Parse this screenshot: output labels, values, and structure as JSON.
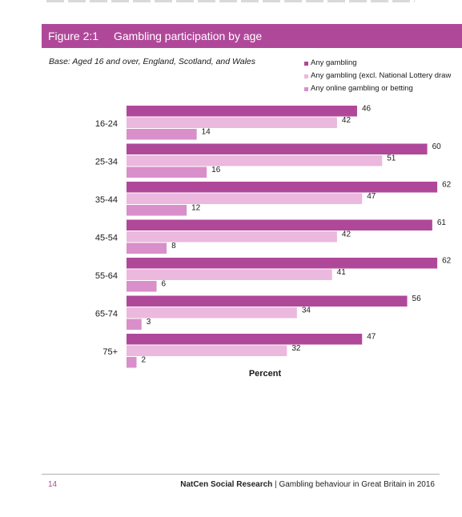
{
  "figure": {
    "number": "Figure 2:1",
    "title": "Gambling participation by age",
    "base": "Base: Aged 16 and over, England, Scotland, and Wales",
    "header_color": "#b0489a"
  },
  "chart_data": {
    "type": "bar",
    "orientation": "horizontal",
    "title": "Gambling participation by age",
    "xlabel": "Percent",
    "ylabel": "",
    "xlim": [
      0,
      70
    ],
    "grid": false,
    "legend_position": "top-right",
    "categories": [
      "16-24",
      "25-34",
      "35-44",
      "45-54",
      "55-64",
      "65-74",
      "75+"
    ],
    "series": [
      {
        "name": "Any gambling",
        "color": "#b0489a",
        "values": [
          46,
          60,
          62,
          61,
          62,
          56,
          47
        ]
      },
      {
        "name": "Any gambling (excl. National Lottery draw",
        "color": "#ebb8de",
        "values": [
          42,
          51,
          47,
          42,
          41,
          34,
          32
        ]
      },
      {
        "name": "Any online gambling or betting",
        "color": "#d98fca",
        "values": [
          14,
          16,
          12,
          8,
          6,
          3,
          2
        ]
      }
    ]
  },
  "footer": {
    "page_number": "14",
    "organisation": "NatCen Social Research",
    "separator": " | ",
    "report_title": "Gambling behaviour in Great Britain in 2016"
  }
}
